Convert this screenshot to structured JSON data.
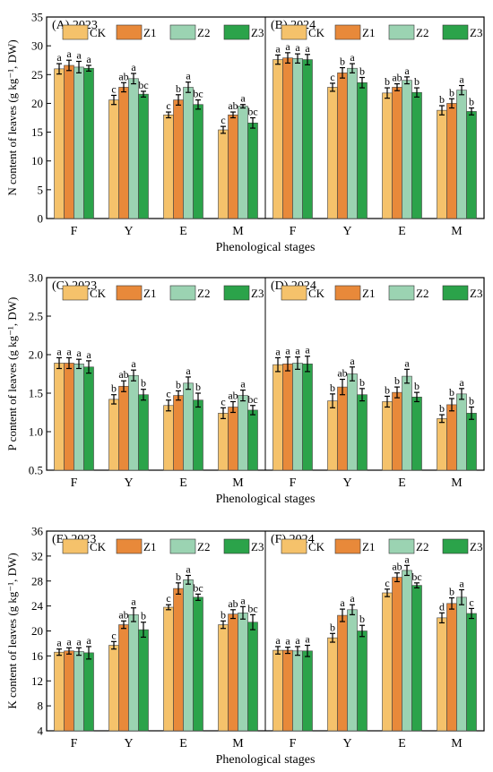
{
  "colors": {
    "CK": "#f5c26b",
    "Z1": "#e8893a",
    "Z2": "#9bd3b2",
    "Z3": "#2ba34a"
  },
  "chart_data": [
    {
      "type": "bar",
      "ylabel": "N content of leaves (g kg⁻¹, DW)",
      "xlabel": "Phenological stages",
      "ylim": [
        0,
        35
      ],
      "yticks": [
        0,
        5,
        10,
        15,
        20,
        25,
        30,
        35
      ],
      "panels": [
        {
          "label": "(A) 2023",
          "categories": [
            "F",
            "Y",
            "E",
            "M"
          ],
          "series": [
            {
              "name": "CK",
              "values": [
                26.0,
                20.6,
                18.0,
                15.4
              ],
              "errors": [
                0.9,
                0.8,
                0.5,
                0.6
              ],
              "letters": [
                "a",
                "c",
                "c",
                "c"
              ]
            },
            {
              "name": "Z1",
              "values": [
                26.6,
                22.8,
                20.6,
                18.0
              ],
              "errors": [
                0.9,
                0.8,
                0.9,
                0.5
              ],
              "letters": [
                "a",
                "ab",
                "b",
                "ab"
              ]
            },
            {
              "name": "Z2",
              "values": [
                26.3,
                24.3,
                22.8,
                19.5
              ],
              "errors": [
                1.0,
                0.9,
                0.9,
                0.3
              ],
              "letters": [
                "a",
                "a",
                "a",
                "a"
              ]
            },
            {
              "name": "Z3",
              "values": [
                26.1,
                21.6,
                19.8,
                16.6
              ],
              "errors": [
                0.5,
                0.5,
                0.8,
                0.9
              ],
              "letters": [
                "a",
                "bc",
                "bc",
                "bc"
              ]
            }
          ]
        },
        {
          "label": "(B) 2024",
          "categories": [
            "F",
            "Y",
            "E",
            "M"
          ],
          "series": [
            {
              "name": "CK",
              "values": [
                27.6,
                22.8,
                21.8,
                18.8
              ],
              "errors": [
                0.8,
                0.7,
                0.9,
                0.8
              ],
              "letters": [
                "a",
                "c",
                "b",
                "b"
              ]
            },
            {
              "name": "Z1",
              "values": [
                27.9,
                25.3,
                22.8,
                20.0
              ],
              "errors": [
                0.9,
                0.9,
                0.6,
                0.8
              ],
              "letters": [
                "a",
                "b",
                "ab",
                "b"
              ]
            },
            {
              "name": "Z2",
              "values": [
                27.8,
                26.1,
                24.0,
                22.3
              ],
              "errors": [
                0.8,
                0.8,
                0.6,
                0.8
              ],
              "letters": [
                "a",
                "a",
                "a",
                "a"
              ]
            },
            {
              "name": "Z3",
              "values": [
                27.6,
                23.6,
                21.9,
                18.6
              ],
              "errors": [
                0.9,
                0.9,
                0.8,
                0.6
              ],
              "letters": [
                "a",
                "b",
                "b",
                "b"
              ]
            }
          ]
        }
      ]
    },
    {
      "type": "bar",
      "ylabel": "P content of leaves (g kg⁻¹, DW)",
      "xlabel": "Phenological stages",
      "ylim": [
        0.5,
        3.0
      ],
      "yticks": [
        0.5,
        1.0,
        1.5,
        2.0,
        2.5,
        3.0
      ],
      "panels": [
        {
          "label": "(C) 2023",
          "categories": [
            "F",
            "Y",
            "E",
            "M"
          ],
          "series": [
            {
              "name": "CK",
              "values": [
                1.89,
                1.42,
                1.34,
                1.24
              ],
              "errors": [
                0.07,
                0.06,
                0.07,
                0.07
              ],
              "letters": [
                "a",
                "b",
                "c",
                "c"
              ]
            },
            {
              "name": "Z1",
              "values": [
                1.89,
                1.59,
                1.47,
                1.32
              ],
              "errors": [
                0.07,
                0.07,
                0.06,
                0.07
              ],
              "letters": [
                "a",
                "ab",
                "b",
                "ab"
              ]
            },
            {
              "name": "Z2",
              "values": [
                1.88,
                1.73,
                1.63,
                1.47
              ],
              "errors": [
                0.06,
                0.07,
                0.08,
                0.07
              ],
              "letters": [
                "a",
                "a",
                "a",
                "a"
              ]
            },
            {
              "name": "Z3",
              "values": [
                1.84,
                1.48,
                1.41,
                1.28
              ],
              "errors": [
                0.08,
                0.07,
                0.09,
                0.06
              ],
              "letters": [
                "a",
                "b",
                "b",
                "bc"
              ]
            }
          ]
        },
        {
          "label": "(D) 2024",
          "categories": [
            "F",
            "Y",
            "E",
            "M"
          ],
          "series": [
            {
              "name": "CK",
              "values": [
                1.87,
                1.4,
                1.39,
                1.17
              ],
              "errors": [
                0.09,
                0.09,
                0.07,
                0.05
              ],
              "letters": [
                "a",
                "b",
                "b",
                "b"
              ]
            },
            {
              "name": "Z1",
              "values": [
                1.88,
                1.58,
                1.51,
                1.35
              ],
              "errors": [
                0.09,
                0.1,
                0.07,
                0.08
              ],
              "letters": [
                "a",
                "ab",
                "b",
                "b"
              ]
            },
            {
              "name": "Z2",
              "values": [
                1.89,
                1.75,
                1.72,
                1.49
              ],
              "errors": [
                0.08,
                0.09,
                0.09,
                0.07
              ],
              "letters": [
                "a",
                "a",
                "a",
                "a"
              ]
            },
            {
              "name": "Z3",
              "values": [
                1.88,
                1.48,
                1.45,
                1.24
              ],
              "errors": [
                0.1,
                0.08,
                0.06,
                0.08
              ],
              "letters": [
                "a",
                "b",
                "b",
                "b"
              ]
            }
          ]
        }
      ]
    },
    {
      "type": "bar",
      "ylabel": "K content of leaves (g kg⁻¹, DW)",
      "xlabel": "Phenological stages",
      "ylim": [
        4,
        36
      ],
      "yticks": [
        4,
        8,
        12,
        16,
        20,
        24,
        28,
        32,
        36
      ],
      "panels": [
        {
          "label": "(E) 2023",
          "categories": [
            "F",
            "Y",
            "E",
            "M"
          ],
          "series": [
            {
              "name": "CK",
              "values": [
                16.6,
                17.7,
                23.8,
                21.0
              ],
              "errors": [
                0.5,
                0.6,
                0.4,
                0.6
              ],
              "letters": [
                "a",
                "c",
                "c",
                "b"
              ]
            },
            {
              "name": "Z1",
              "values": [
                16.8,
                21.0,
                26.8,
                22.7
              ],
              "errors": [
                0.5,
                0.6,
                0.9,
                0.7
              ],
              "letters": [
                "a",
                "ab",
                "b",
                "ab"
              ]
            },
            {
              "name": "Z2",
              "values": [
                16.7,
                22.6,
                28.2,
                22.9
              ],
              "errors": [
                0.6,
                1.1,
                0.7,
                1.0
              ],
              "letters": [
                "a",
                "a",
                "a",
                "a"
              ]
            },
            {
              "name": "Z3",
              "values": [
                16.5,
                20.2,
                25.4,
                21.4
              ],
              "errors": [
                1.0,
                1.2,
                0.5,
                1.2
              ],
              "letters": [
                "a",
                "b",
                "bc",
                "bc"
              ]
            }
          ]
        },
        {
          "label": "(F) 2024",
          "categories": [
            "F",
            "Y",
            "E",
            "M"
          ],
          "series": [
            {
              "name": "CK",
              "values": [
                16.9,
                18.9,
                26.1,
                22.1
              ],
              "errors": [
                0.6,
                0.7,
                0.6,
                0.8
              ],
              "letters": [
                "a",
                "b",
                "c",
                "d"
              ]
            },
            {
              "name": "Z1",
              "values": [
                16.9,
                22.5,
                28.6,
                24.4
              ],
              "errors": [
                0.5,
                1.0,
                0.7,
                0.9
              ],
              "letters": [
                "a",
                "a",
                "ab",
                "b"
              ]
            },
            {
              "name": "Z2",
              "values": [
                16.8,
                23.4,
                29.7,
                25.4
              ],
              "errors": [
                0.7,
                0.8,
                0.8,
                1.2
              ],
              "letters": [
                "a",
                "a",
                "a",
                "a"
              ]
            },
            {
              "name": "Z3",
              "values": [
                16.8,
                20.0,
                27.3,
                22.8
              ],
              "errors": [
                0.9,
                0.9,
                0.4,
                0.8
              ],
              "letters": [
                "a",
                "b",
                "bc",
                "c"
              ]
            }
          ]
        }
      ]
    }
  ]
}
